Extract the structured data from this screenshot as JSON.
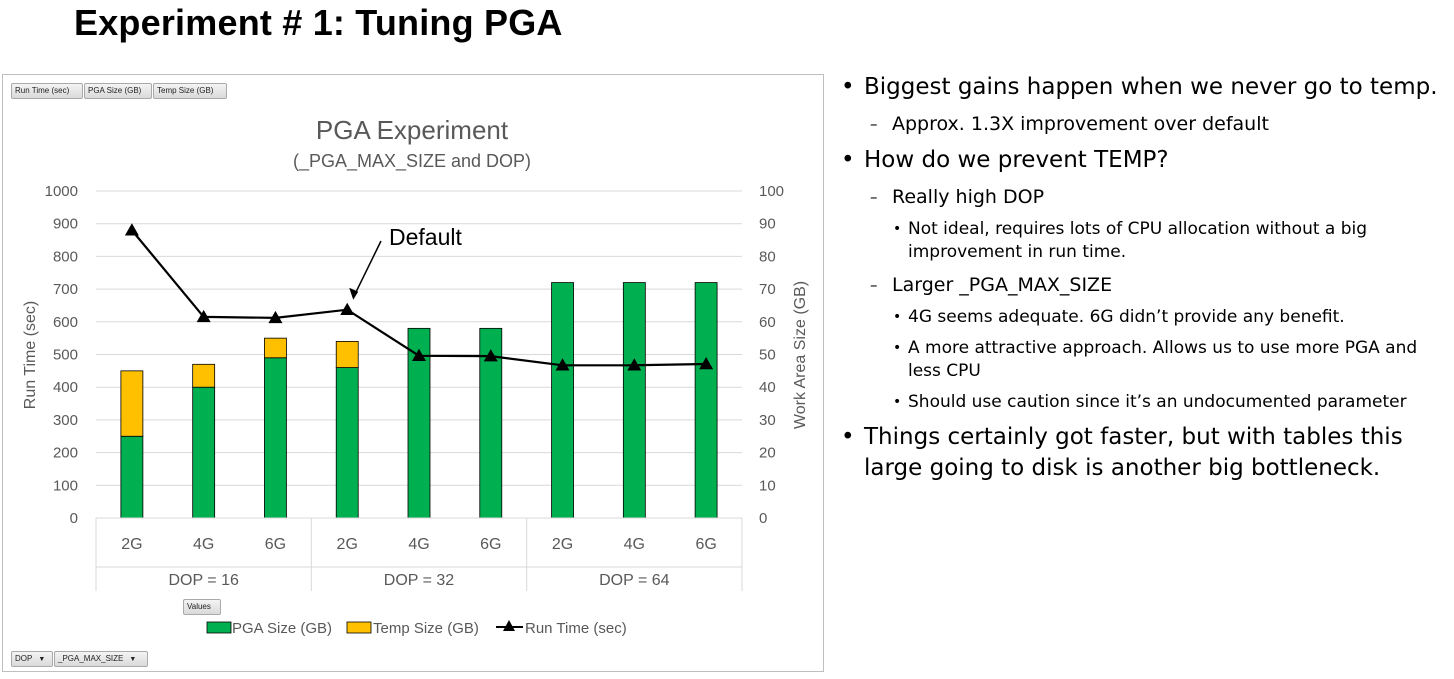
{
  "slide": {
    "title": "Experiment # 1: Tuning PGA"
  },
  "pivot": {
    "top_fields": [
      "Run Time (sec)",
      "PGA Size (GB)",
      "Temp Size (GB)"
    ],
    "values_button": "Values",
    "bottom_fields": [
      "DOP",
      "_PGA_MAX_SIZE"
    ]
  },
  "chart_data": {
    "type": "bar",
    "stacked": true,
    "combo": "stacked-bar + line on secondary axis",
    "title": "PGA Experiment",
    "subtitle": "(_PGA_MAX_SIZE and DOP)",
    "ylabel": "Run Time (sec)",
    "y2label": "Work Area Size (GB)",
    "ylim": [
      0,
      1000
    ],
    "y2lim": [
      0,
      100
    ],
    "yticks": [
      0,
      100,
      200,
      300,
      400,
      500,
      600,
      700,
      800,
      900,
      1000
    ],
    "y2ticks": [
      0,
      10,
      20,
      30,
      40,
      50,
      60,
      70,
      80,
      90,
      100
    ],
    "categories": [
      "2G",
      "4G",
      "6G",
      "2G",
      "4G",
      "6G",
      "2G",
      "4G",
      "6G"
    ],
    "groups": [
      {
        "label": "DOP = 16",
        "span": 3
      },
      {
        "label": "DOP = 32",
        "span": 3
      },
      {
        "label": "DOP = 64",
        "span": 3
      }
    ],
    "series": [
      {
        "name": "PGA Size (GB)",
        "kind": "bar",
        "axis": "secondary",
        "color": "#00b050",
        "values": [
          25,
          40,
          49,
          46,
          58,
          58,
          72,
          72,
          72
        ]
      },
      {
        "name": "Temp Size (GB)",
        "kind": "bar",
        "axis": "secondary",
        "color": "#ffc000",
        "values": [
          20,
          7,
          6,
          8,
          0,
          0,
          0,
          0,
          0
        ]
      },
      {
        "name": "Run Time (sec)",
        "kind": "line",
        "axis": "primary",
        "color": "#000000",
        "values": [
          880,
          615,
          612,
          637,
          496,
          495,
          467,
          467,
          471
        ]
      }
    ],
    "annotation": {
      "text": "Default",
      "category_index": 3
    },
    "grid": true,
    "legend": "bottom"
  },
  "notes": {
    "items": [
      {
        "level": 1,
        "text": "Biggest gains happen when we never go to temp."
      },
      {
        "level": 2,
        "text": "Approx. 1.3X improvement over default"
      },
      {
        "level": 1,
        "text": "How do we prevent TEMP?"
      },
      {
        "level": 2,
        "text": "Really high DOP"
      },
      {
        "level": 3,
        "text": "Not ideal, requires lots of CPU allocation without a big improvement in run time."
      },
      {
        "level": 2,
        "text": "Larger _PGA_MAX_SIZE"
      },
      {
        "level": 3,
        "text": "4G seems adequate.  6G didn’t provide any benefit."
      },
      {
        "level": 3,
        "text": "A more attractive approach.  Allows us to use more PGA and less CPU"
      },
      {
        "level": 3,
        "text": "Should use caution since it’s an undocumented parameter"
      },
      {
        "level": 1,
        "text": "Things certainly got faster, but with tables this large going to disk is another big bottleneck."
      }
    ],
    "marks": {
      "level1": "•",
      "level2": "–",
      "level3": "•"
    }
  }
}
